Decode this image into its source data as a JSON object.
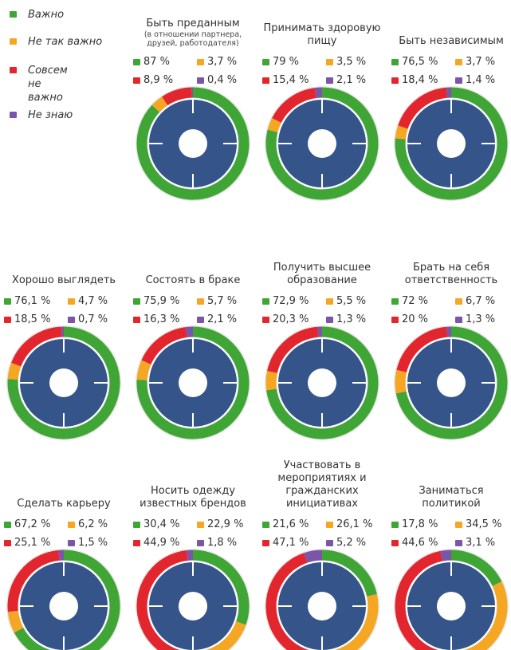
{
  "legend": {
    "categories": [
      "Важно",
      "Не так важно",
      "Совсем не важно",
      "Не знаю"
    ],
    "colors": [
      "#3fa535",
      "#f5a623",
      "#e3262e",
      "#7b55a8"
    ]
  },
  "chart_data": [
    {
      "type": "donut",
      "title": "Быть преданным",
      "subtitle": "(в отношении партнера, друзей, работодателя)",
      "values": [
        87,
        3.7,
        8.9,
        0.4
      ],
      "value_labels": [
        "87 %",
        "3,7 %",
        "8,9 %",
        "0,4 %"
      ]
    },
    {
      "type": "donut",
      "title": "Принимать здоровую пищу",
      "values": [
        79,
        3.5,
        15.4,
        2.1
      ],
      "value_labels": [
        "79 %",
        "3,5 %",
        "15,4 %",
        "2,1 %"
      ]
    },
    {
      "type": "donut",
      "title": "Быть независимым",
      "values": [
        76.5,
        3.7,
        18.4,
        1.4
      ],
      "value_labels": [
        "76,5 %",
        "3,7 %",
        "18,4 %",
        "1,4 %"
      ]
    },
    {
      "type": "donut",
      "title": "Хорошо выглядеть",
      "values": [
        76.1,
        4.7,
        18.5,
        0.7
      ],
      "value_labels": [
        "76,1 %",
        "4,7 %",
        "18,5 %",
        "0,7 %"
      ]
    },
    {
      "type": "donut",
      "title": "Состоять в браке",
      "values": [
        75.9,
        5.7,
        16.3,
        2.1
      ],
      "value_labels": [
        "75,9 %",
        "5,7 %",
        "16,3 %",
        "2,1 %"
      ]
    },
    {
      "type": "donut",
      "title": "Получить высшее образование",
      "values": [
        72.9,
        5.5,
        20.3,
        1.3
      ],
      "value_labels": [
        "72,9 %",
        "5,5 %",
        "20,3 %",
        "1,3 %"
      ]
    },
    {
      "type": "donut",
      "title": "Брать на себя ответственность",
      "values": [
        72,
        6.7,
        20,
        1.3
      ],
      "value_labels": [
        "72 %",
        "6,7 %",
        "20 %",
        "1,3 %"
      ]
    },
    {
      "type": "donut",
      "title": "Сделать карьеру",
      "values": [
        67.2,
        6.2,
        25.1,
        1.5
      ],
      "value_labels": [
        "67,2 %",
        "6,2 %",
        "25,1 %",
        "1,5 %"
      ]
    },
    {
      "type": "donut",
      "title": "Носить одежду известных брендов",
      "values": [
        30.4,
        22.9,
        44.9,
        1.8
      ],
      "value_labels": [
        "30,4 %",
        "22,9 %",
        "44,9 %",
        "1,8 %"
      ]
    },
    {
      "type": "donut",
      "title": "Участвовать в мероприятиях и гражданских инициативах",
      "values": [
        21.6,
        26.1,
        47.1,
        5.2
      ],
      "value_labels": [
        "21,6 %",
        "26,1 %",
        "47,1 %",
        "5,2 %"
      ]
    },
    {
      "type": "donut",
      "title": "Заниматься политикой",
      "values": [
        17.8,
        34.5,
        44.6,
        3.1
      ],
      "value_labels": [
        "17,8 %",
        "34,5 %",
        "44,6 %",
        "3,1 %"
      ]
    }
  ]
}
